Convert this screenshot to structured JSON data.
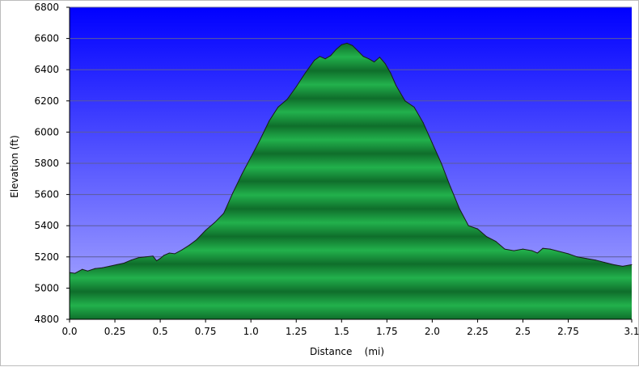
{
  "chart_data": {
    "type": "area",
    "xlabel": "Distance    (mi)",
    "ylabel": "Elevation (ft)",
    "xlim": [
      0,
      3.1
    ],
    "ylim": [
      4800,
      6800
    ],
    "x_ticks": [
      "0.0",
      "0.25",
      "0.5",
      "0.75",
      "1.0",
      "1.25",
      "1.5",
      "1.75",
      "2.0",
      "2.25",
      "2.5",
      "2.75",
      "3.1"
    ],
    "x_tick_values": [
      0,
      0.25,
      0.5,
      0.75,
      1.0,
      1.25,
      1.5,
      1.75,
      2.0,
      2.25,
      2.5,
      2.75,
      3.1
    ],
    "y_ticks": [
      "4800",
      "5000",
      "5200",
      "5400",
      "5600",
      "5800",
      "6000",
      "6200",
      "6400",
      "6600",
      "6800"
    ],
    "y_tick_values": [
      4800,
      5000,
      5200,
      5400,
      5600,
      5800,
      6000,
      6200,
      6400,
      6600,
      6800
    ],
    "grid": "horizontal",
    "legend": "none",
    "colors": {
      "plot_bg_top": "#0000ff",
      "plot_bg_bottom": "#b0b0ff",
      "fill_dark": "#0f6e2b",
      "fill_light": "#22b14c",
      "outline": "#1a1a1a",
      "grid": "#5d5d9a"
    },
    "series": [
      {
        "x": [
          0.0,
          0.03,
          0.07,
          0.1,
          0.14,
          0.18,
          0.22,
          0.26,
          0.3,
          0.34,
          0.38,
          0.42,
          0.46,
          0.48,
          0.5,
          0.52,
          0.55,
          0.58,
          0.62,
          0.66,
          0.7,
          0.75,
          0.8,
          0.85,
          0.9,
          0.95,
          1.0,
          1.05,
          1.1,
          1.15,
          1.2,
          1.25,
          1.3,
          1.35,
          1.38,
          1.41,
          1.44,
          1.47,
          1.5,
          1.53,
          1.56,
          1.59,
          1.62,
          1.65,
          1.68,
          1.71,
          1.74,
          1.77,
          1.8,
          1.85,
          1.9,
          1.95,
          2.0,
          2.05,
          2.1,
          2.15,
          2.2,
          2.25,
          2.3,
          2.35,
          2.4,
          2.45,
          2.5,
          2.55,
          2.58,
          2.61,
          2.65,
          2.7,
          2.75,
          2.8,
          2.85,
          2.9,
          2.95,
          3.0,
          3.05,
          3.1
        ],
        "y": [
          5100,
          5095,
          5120,
          5110,
          5125,
          5130,
          5140,
          5150,
          5160,
          5180,
          5195,
          5200,
          5205,
          5175,
          5190,
          5210,
          5225,
          5220,
          5245,
          5275,
          5310,
          5370,
          5420,
          5480,
          5610,
          5730,
          5840,
          5950,
          6070,
          6160,
          6210,
          6290,
          6380,
          6460,
          6485,
          6470,
          6490,
          6530,
          6560,
          6570,
          6555,
          6520,
          6485,
          6470,
          6450,
          6480,
          6440,
          6380,
          6300,
          6200,
          6160,
          6060,
          5930,
          5800,
          5650,
          5510,
          5400,
          5380,
          5330,
          5300,
          5250,
          5240,
          5250,
          5240,
          5225,
          5255,
          5250,
          5235,
          5220,
          5200,
          5190,
          5180,
          5165,
          5150,
          5140,
          5150
        ]
      }
    ]
  }
}
